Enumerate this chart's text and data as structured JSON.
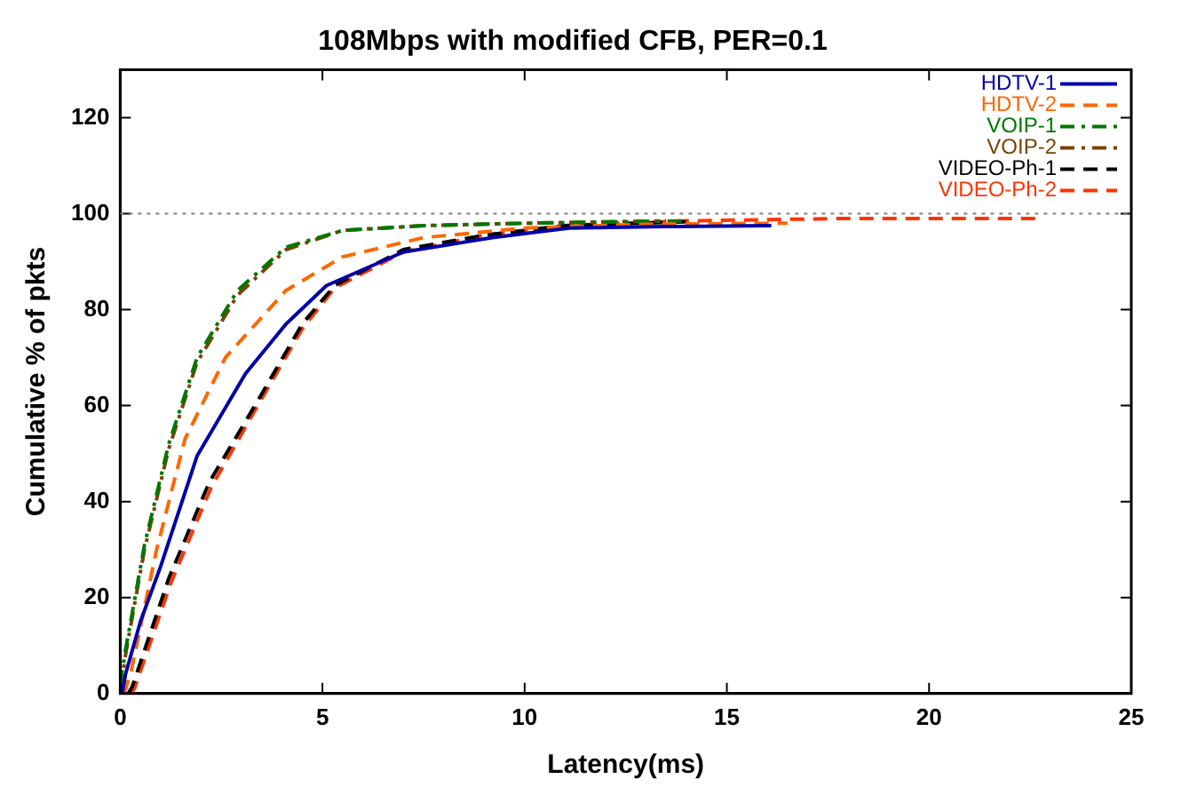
{
  "chart_data": {
    "type": "line",
    "title": "108Mbps with modified CFB, PER=0.1",
    "xlabel": "Latency(ms)",
    "ylabel": "Cumulative % of pkts",
    "xlim": [
      0,
      25
    ],
    "xticks": [
      0,
      5,
      10,
      15,
      20,
      25
    ],
    "ylim": [
      0,
      130
    ],
    "yticks": [
      0,
      20,
      40,
      60,
      80,
      100,
      120
    ],
    "grid": false,
    "legend": "top right",
    "marker": "none",
    "ref_lines": [
      {
        "axis": "y",
        "value": 100,
        "color": "#808080",
        "line_style": "dotted"
      }
    ],
    "series": [
      {
        "name": "HDTV-1",
        "color": "#0000aa",
        "line_style": "solid",
        "x": [
          0.05,
          0.13,
          0.5,
          1.0,
          1.9,
          3.1,
          4.1,
          5.1,
          7.0,
          9.2,
          11.1,
          13.5,
          16.1
        ],
        "values": [
          0,
          4,
          15,
          26.5,
          49.5,
          66.7,
          77,
          85,
          92,
          95,
          97,
          97.3,
          97.5
        ]
      },
      {
        "name": "HDTV-2",
        "color": "#ff6600",
        "line_style": "dashed",
        "x": [
          0.1,
          0.28,
          0.9,
          1.6,
          2.6,
          4.1,
          5.5,
          7.5,
          10,
          13,
          16.5
        ],
        "values": [
          0,
          5,
          30,
          53,
          70,
          84,
          91,
          95,
          97,
          97.8,
          98
        ]
      },
      {
        "name": "VOIP-1",
        "color": "#007700",
        "line_style": "dashdot",
        "x": [
          0,
          0.13,
          0.6,
          1.2,
          1.9,
          2.9,
          4.1,
          5.5,
          7.5,
          10,
          14
        ],
        "values": [
          2,
          9,
          31,
          52,
          70,
          84,
          93,
          96.5,
          97.5,
          98,
          98.5
        ]
      },
      {
        "name": "VOIP-2",
        "color": "#774400",
        "line_style": "dashdot",
        "x": [
          0,
          0.15,
          0.6,
          1.2,
          1.9,
          2.9,
          4.1,
          5.5,
          7.5,
          10,
          13.5
        ],
        "values": [
          1,
          9,
          30,
          51,
          69,
          83,
          92.5,
          96.5,
          97.5,
          98,
          98.5
        ]
      },
      {
        "name": "VIDEO-Ph-1",
        "color": "#000000",
        "line_style": "dashed",
        "x": [
          0.2,
          0.3,
          1.2,
          2.2,
          3.4,
          4.5,
          5.3,
          7.0,
          9,
          11,
          14
        ],
        "values": [
          0,
          1.5,
          24,
          44,
          61,
          77,
          85,
          92.5,
          95.5,
          97.5,
          98.3
        ]
      },
      {
        "name": "VIDEO-Ph-2",
        "color": "#ff3300",
        "line_style": "dashed",
        "x": [
          0.25,
          0.35,
          1.25,
          2.25,
          3.4,
          4.5,
          5.3,
          7.0,
          9,
          11,
          14,
          18,
          22.7
        ],
        "values": [
          0,
          1,
          23,
          43,
          60,
          76,
          84.5,
          92,
          95.5,
          97.5,
          98.5,
          99,
          99
        ]
      }
    ]
  }
}
